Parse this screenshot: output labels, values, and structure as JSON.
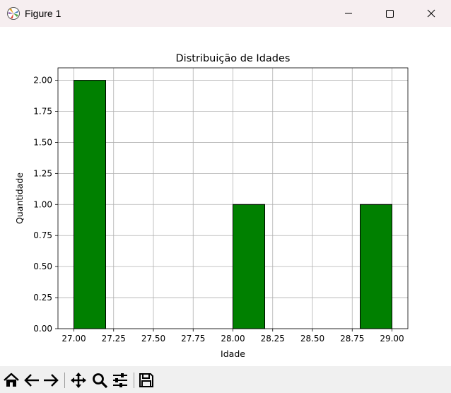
{
  "window": {
    "title": "Figure 1",
    "icons": [
      "matplotlib-logo-icon",
      "minimize-icon",
      "maximize-icon",
      "close-icon"
    ]
  },
  "chart_data": {
    "type": "bar",
    "title": "Distribuição de Idades",
    "xlabel": "Idade",
    "ylabel": "Quantidade",
    "xlim": [
      26.9,
      29.1
    ],
    "ylim": [
      0,
      2.1
    ],
    "xticks": [
      "27.00",
      "27.25",
      "27.50",
      "27.75",
      "28.00",
      "28.25",
      "28.50",
      "28.75",
      "29.00"
    ],
    "yticks": [
      "0.00",
      "0.25",
      "0.50",
      "0.75",
      "1.00",
      "1.25",
      "1.50",
      "1.75",
      "2.00"
    ],
    "bins": [
      {
        "start": 27.0,
        "end": 27.2,
        "count": 2
      },
      {
        "start": 28.0,
        "end": 28.2,
        "count": 1
      },
      {
        "start": 28.8,
        "end": 29.0,
        "count": 1
      }
    ],
    "grid": true,
    "bar_color": "#008000",
    "edge_color": "#000000"
  },
  "toolbar": {
    "icons": [
      "home-icon",
      "back-icon",
      "forward-icon",
      "pan-icon",
      "zoom-icon",
      "configure-subplots-icon",
      "save-icon"
    ]
  }
}
